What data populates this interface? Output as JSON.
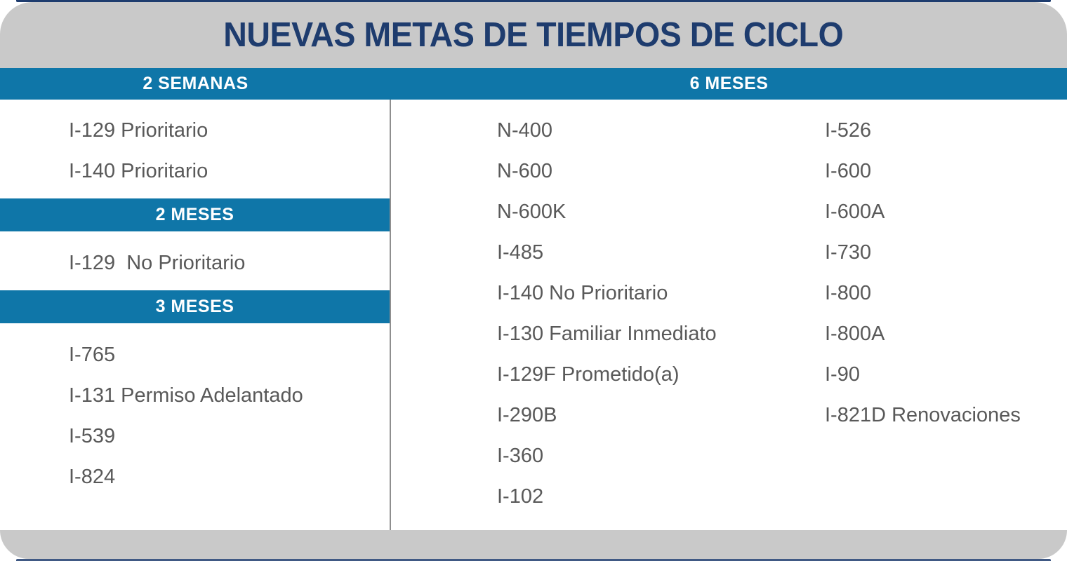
{
  "title": "NUEVAS METAS DE TIEMPOS DE CICLO",
  "colors": {
    "navy": "#1e3c6e",
    "blue": "#0f76a8",
    "gray_band": "#c9c9c9",
    "text_gray": "#595959",
    "divider": "#8f8f8f"
  },
  "left_column": {
    "header": "2 SEMANAS",
    "sections": [
      {
        "items": [
          "I-129 Prioritario",
          "I-140 Prioritario"
        ]
      },
      {
        "bar": "2 MESES",
        "items": [
          "I-129  No Prioritario"
        ]
      },
      {
        "bar": "3 MESES",
        "items": [
          "I-765",
          "I-131 Permiso Adelantado",
          "I-539",
          "I-824"
        ]
      }
    ]
  },
  "right_section": {
    "header": "6 MESES",
    "columns": [
      [
        "N-400",
        "N-600",
        "N-600K",
        "I-485",
        "I-140 No Prioritario",
        "I-130 Familiar Inmediato",
        "I-129F Prometido(a)",
        "I-290B",
        "I-360",
        "I-102"
      ],
      [
        "I-526",
        "I-600",
        "I-600A",
        "I-730",
        "I-800",
        "I-800A",
        "I-90",
        "I-821D Renovaciones"
      ]
    ]
  }
}
